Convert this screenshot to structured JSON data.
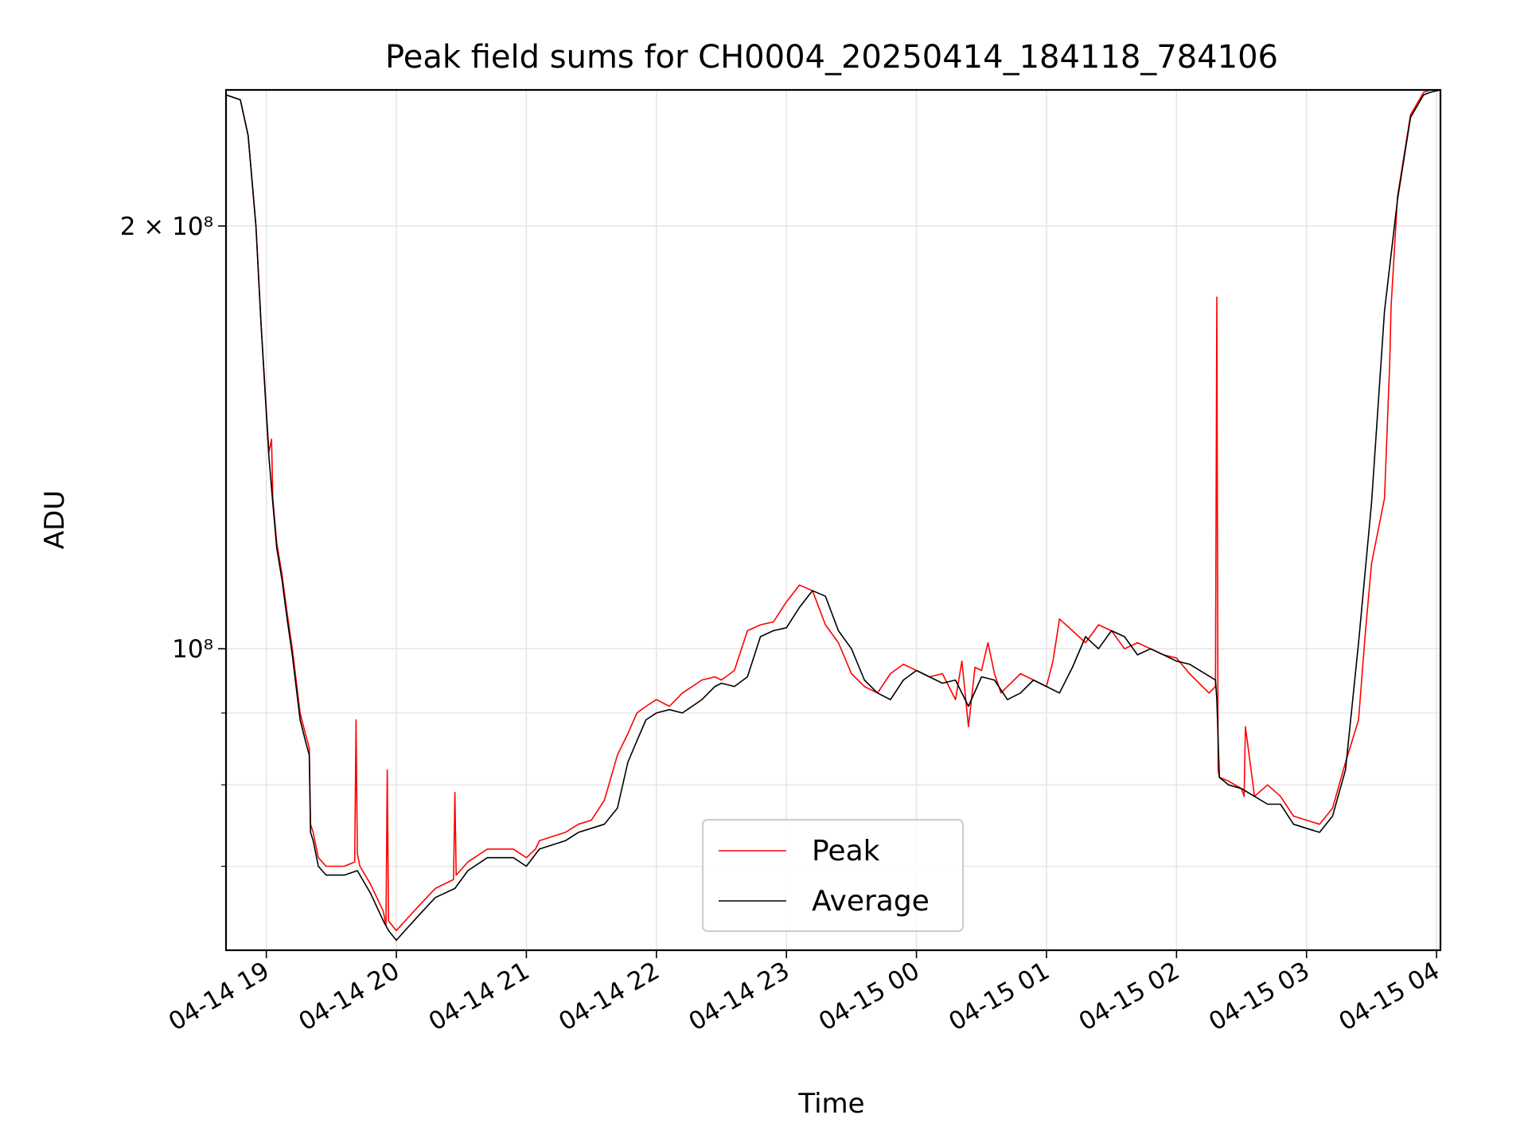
{
  "chart_data": {
    "type": "line",
    "title": "Peak field sums for CH0004_20250414_184118_784106",
    "xlabel": "Time",
    "ylabel": "ADU",
    "x_ticks": [
      "04-14 19",
      "04-14 20",
      "04-14 21",
      "04-14 22",
      "04-14 23",
      "04-15 00",
      "04-15 01",
      "04-15 02",
      "04-15 03",
      "04-15 04"
    ],
    "x_tick_hours": [
      19,
      20,
      21,
      22,
      23,
      24,
      25,
      26,
      27,
      28
    ],
    "xlim_hours": [
      18.69,
      28.03
    ],
    "ylim": [
      61000000,
      250000000
    ],
    "y_scale": "log",
    "y_major_ticks": [
      {
        "value": 200000000,
        "label": "2 × 10⁸"
      },
      {
        "value": 100000000,
        "label": "10⁸"
      }
    ],
    "y_minor_ticks": [
      90000000,
      80000000,
      70000000,
      60000000
    ],
    "grid": true,
    "legend_position": "lower-center",
    "colors": {
      "peak": "#ff0000",
      "average": "#000000",
      "grid": "#e6e6e6"
    },
    "series": [
      {
        "name": "Peak",
        "x_hours": [
          18.69,
          18.8,
          18.86,
          18.92,
          18.96,
          19.02,
          19.04,
          19.05,
          19.08,
          19.12,
          19.16,
          19.2,
          19.26,
          19.3,
          19.33,
          19.34,
          19.36,
          19.4,
          19.46,
          19.52,
          19.6,
          19.68,
          19.69,
          19.7,
          19.72,
          19.8,
          19.9,
          19.92,
          19.93,
          19.94,
          20.0,
          20.1,
          20.2,
          20.3,
          20.44,
          20.45,
          20.46,
          20.55,
          20.7,
          20.9,
          21.0,
          21.07,
          21.1,
          21.3,
          21.4,
          21.5,
          21.6,
          21.7,
          21.78,
          21.85,
          21.92,
          22.0,
          22.1,
          22.2,
          22.35,
          22.45,
          22.5,
          22.6,
          22.7,
          22.8,
          22.9,
          23.0,
          23.1,
          23.2,
          23.3,
          23.4,
          23.5,
          23.6,
          23.7,
          23.8,
          23.9,
          24.0,
          24.1,
          24.2,
          24.3,
          24.35,
          24.4,
          24.45,
          24.5,
          24.55,
          24.6,
          24.65,
          24.7,
          24.8,
          24.9,
          25.0,
          25.05,
          25.1,
          25.2,
          25.3,
          25.4,
          25.5,
          25.6,
          25.7,
          25.8,
          25.9,
          26.0,
          26.1,
          26.25,
          26.3,
          26.31,
          26.32,
          26.33,
          26.4,
          26.5,
          26.52,
          26.53,
          26.6,
          26.7,
          26.8,
          26.9,
          27.0,
          27.1,
          27.2,
          27.3,
          27.4,
          27.45,
          27.5,
          27.6,
          27.64,
          27.65,
          27.7,
          27.8,
          27.9,
          27.95,
          28.03
        ],
        "values": [
          248000000,
          246000000,
          232000000,
          200000000,
          170000000,
          138000000,
          141000000,
          128000000,
          119000000,
          113000000,
          106000000,
          100000000,
          90000000,
          87000000,
          85000000,
          75000000,
          74000000,
          71000000,
          70000000,
          70000000,
          70000000,
          70500000,
          89000000,
          71500000,
          70000000,
          68000000,
          65000000,
          63500000,
          82000000,
          64000000,
          63000000,
          64500000,
          66000000,
          67500000,
          68500000,
          79000000,
          69000000,
          70500000,
          72000000,
          72000000,
          71000000,
          72000000,
          73000000,
          74000000,
          75000000,
          75500000,
          78000000,
          84000000,
          87000000,
          90000000,
          91000000,
          92000000,
          91000000,
          93000000,
          95000000,
          95500000,
          95000000,
          96500000,
          103000000,
          104000000,
          104500000,
          108000000,
          111000000,
          110000000,
          104000000,
          101000000,
          96000000,
          94000000,
          93000000,
          96000000,
          97500000,
          96500000,
          95500000,
          96000000,
          92000000,
          98000000,
          88000000,
          97000000,
          96500000,
          101000000,
          96000000,
          93000000,
          94000000,
          96000000,
          95000000,
          94000000,
          98000000,
          105000000,
          103000000,
          101000000,
          104000000,
          103000000,
          100000000,
          101000000,
          100000000,
          99000000,
          98500000,
          96000000,
          93000000,
          94000000,
          178000000,
          82000000,
          81000000,
          80500000,
          79500000,
          78500000,
          88000000,
          78500000,
          80000000,
          78500000,
          76000000,
          75500000,
          75000000,
          77000000,
          83000000,
          89000000,
          102000000,
          115000000,
          128000000,
          160000000,
          175000000,
          210000000,
          240000000,
          249000000,
          250000000,
          250000000
        ]
      },
      {
        "name": "Average",
        "x_hours": [
          18.69,
          18.8,
          18.86,
          18.92,
          18.96,
          19.02,
          19.05,
          19.08,
          19.12,
          19.16,
          19.2,
          19.26,
          19.3,
          19.33,
          19.34,
          19.36,
          19.4,
          19.46,
          19.52,
          19.6,
          19.7,
          19.8,
          19.9,
          19.94,
          20.0,
          20.1,
          20.2,
          20.3,
          20.45,
          20.55,
          20.7,
          20.9,
          21.0,
          21.1,
          21.3,
          21.4,
          21.5,
          21.6,
          21.7,
          21.78,
          21.85,
          21.92,
          22.0,
          22.1,
          22.2,
          22.35,
          22.45,
          22.5,
          22.6,
          22.7,
          22.8,
          22.9,
          23.0,
          23.1,
          23.2,
          23.3,
          23.4,
          23.5,
          23.6,
          23.7,
          23.8,
          23.9,
          24.0,
          24.1,
          24.2,
          24.3,
          24.4,
          24.5,
          24.6,
          24.7,
          24.8,
          24.9,
          25.0,
          25.1,
          25.2,
          25.3,
          25.4,
          25.5,
          25.6,
          25.7,
          25.8,
          25.9,
          26.0,
          26.1,
          26.3,
          26.31,
          26.33,
          26.4,
          26.5,
          26.6,
          26.7,
          26.8,
          26.9,
          27.0,
          27.1,
          27.2,
          27.3,
          27.4,
          27.5,
          27.6,
          27.7,
          27.8,
          27.9,
          27.95,
          28.03
        ],
        "values": [
          248000000,
          246000000,
          232000000,
          200000000,
          170000000,
          137000000,
          127000000,
          118000000,
          112000000,
          105000000,
          99000000,
          89000000,
          86000000,
          84000000,
          74000000,
          73000000,
          70000000,
          69000000,
          69000000,
          69000000,
          69500000,
          67000000,
          64000000,
          63000000,
          62000000,
          63500000,
          65000000,
          66500000,
          67500000,
          69500000,
          71000000,
          71000000,
          70000000,
          72000000,
          73000000,
          74000000,
          74500000,
          75000000,
          77000000,
          83000000,
          86000000,
          89000000,
          90000000,
          90500000,
          90000000,
          92000000,
          94000000,
          94500000,
          94000000,
          95500000,
          102000000,
          103000000,
          103500000,
          107000000,
          110000000,
          109000000,
          103000000,
          100000000,
          95000000,
          93000000,
          92000000,
          95000000,
          96500000,
          95500000,
          94500000,
          95000000,
          91000000,
          95500000,
          95000000,
          92000000,
          93000000,
          95000000,
          94000000,
          93000000,
          97000000,
          102000000,
          100000000,
          103000000,
          102000000,
          99000000,
          100000000,
          99000000,
          98000000,
          97500000,
          95000000,
          92000000,
          81000000,
          80000000,
          79500000,
          78500000,
          77500000,
          77500000,
          75000000,
          74500000,
          74000000,
          76000000,
          82000000,
          101000000,
          127000000,
          174000000,
          209000000,
          239000000,
          248000000,
          249000000,
          250000000
        ]
      }
    ]
  }
}
